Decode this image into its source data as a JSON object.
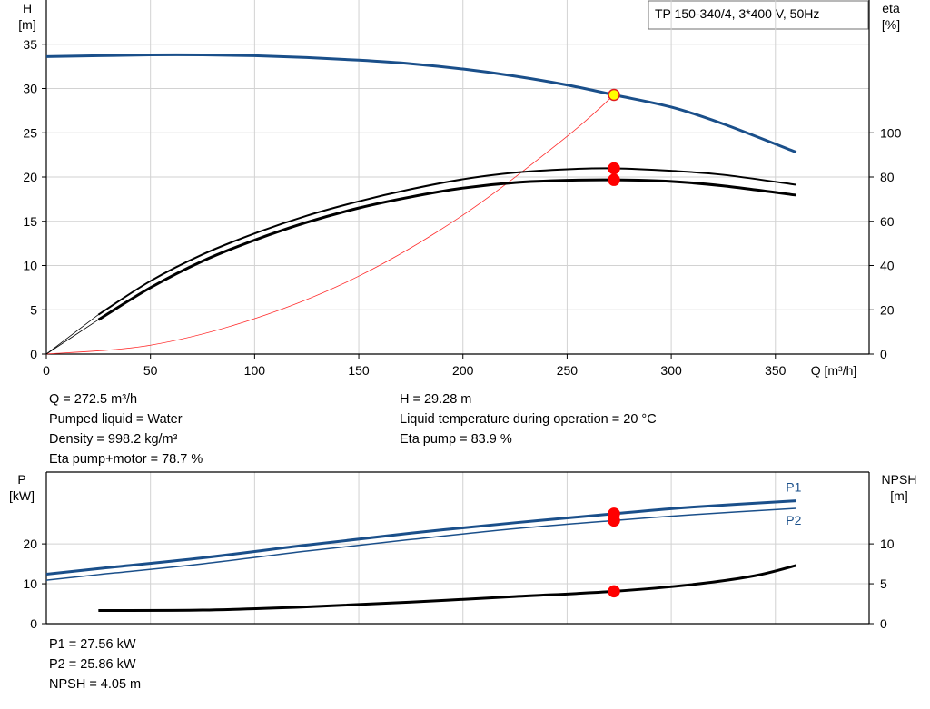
{
  "title_box": "TP 150-340/4, 3*400 V, 50Hz",
  "chart_data": [
    {
      "type": "line",
      "name": "",
      "xlabel": "Q [m³/h]",
      "ylabel_left": [
        "H",
        "[m]"
      ],
      "ylabel_right": [
        "eta",
        "[%]"
      ],
      "xlim": [
        0,
        395
      ],
      "ylim_left": [
        0,
        40
      ],
      "ylim_right": [
        0,
        160
      ],
      "x_ticks": [
        "0",
        "50",
        "100",
        "150",
        "200",
        "250",
        "300",
        "350"
      ],
      "y_ticks_left": [
        "0",
        "5",
        "10",
        "15",
        "20",
        "25",
        "30",
        "35"
      ],
      "y_ticks_right": [
        "0",
        "20",
        "40",
        "60",
        "80",
        "100"
      ],
      "grid": true,
      "series": [
        {
          "axis": "left",
          "color": "#1a4f8a",
          "width": 3,
          "x": [
            0,
            25,
            50,
            75,
            100,
            125,
            150,
            175,
            200,
            225,
            250,
            272.5,
            300,
            325,
            360
          ],
          "y": [
            33.6,
            33.7,
            33.8,
            33.8,
            33.7,
            33.5,
            33.2,
            32.8,
            32.2,
            31.4,
            30.4,
            29.28,
            27.9,
            26.0,
            22.8
          ]
        },
        {
          "axis": "left",
          "color": "#ff2a2a",
          "width": 0.8,
          "x": [
            0,
            50,
            100,
            150,
            200,
            250,
            272.5
          ],
          "y": [
            0,
            1.0,
            4.0,
            8.8,
            15.7,
            24.6,
            29.28
          ]
        },
        {
          "axis": "right",
          "color": "#000000",
          "width": 2,
          "x": [
            25,
            50,
            75,
            100,
            125,
            150,
            175,
            200,
            225,
            250,
            272.5,
            300,
            325,
            360
          ],
          "y": [
            17.8,
            33,
            45,
            54.5,
            62.5,
            69,
            74.5,
            79,
            82,
            83.5,
            83.9,
            82.8,
            81,
            76.5
          ]
        },
        {
          "axis": "right",
          "color": "#000000",
          "width": 3,
          "x": [
            25,
            50,
            75,
            100,
            125,
            150,
            175,
            200,
            225,
            250,
            272.5,
            300,
            325,
            360
          ],
          "y": [
            15.5,
            30,
            42,
            51.5,
            59.5,
            66,
            71,
            75,
            77.5,
            78.5,
            78.7,
            78,
            76,
            71.8
          ]
        },
        {
          "axis": "right",
          "color": "#000000",
          "width": 0.8,
          "x": [
            0,
            25
          ],
          "y": [
            0,
            17.8
          ]
        },
        {
          "axis": "right",
          "color": "#000000",
          "width": 0.8,
          "x": [
            0,
            25
          ],
          "y": [
            0,
            15.5
          ]
        }
      ],
      "markers": [
        {
          "x": 272.5,
          "y": 29.28,
          "axis": "left",
          "fill": "#ffff00",
          "stroke": "#e02020"
        },
        {
          "x": 272.5,
          "y": 83.9,
          "axis": "right",
          "fill": "#ff0000",
          "stroke": "#ff0000"
        },
        {
          "x": 272.5,
          "y": 78.7,
          "axis": "right",
          "fill": "#ff0000",
          "stroke": "#ff0000"
        }
      ]
    },
    {
      "type": "line",
      "name": "",
      "ylabel_left": [
        "P",
        "[kW]"
      ],
      "ylabel_right": [
        "NPSH",
        "[m]"
      ],
      "xlim": [
        0,
        395
      ],
      "ylim_left": [
        0,
        38
      ],
      "ylim_right": [
        0,
        19
      ],
      "y_ticks_left": [
        "0",
        "10",
        "20"
      ],
      "y_ticks_right": [
        "0",
        "5",
        "10"
      ],
      "grid": true,
      "series": [
        {
          "name": "P1",
          "axis": "left",
          "color": "#1a4f8a",
          "width": 3,
          "x": [
            0,
            25,
            75,
            125,
            175,
            225,
            272.5,
            310,
            360
          ],
          "y": [
            12.4,
            13.8,
            16.5,
            19.7,
            22.7,
            25.3,
            27.56,
            29.2,
            30.8
          ]
        },
        {
          "name": "P2",
          "axis": "left",
          "color": "#1a4f8a",
          "width": 1.5,
          "x": [
            0,
            25,
            75,
            125,
            175,
            225,
            272.5,
            310,
            360
          ],
          "y": [
            10.9,
            12.3,
            15.0,
            18.2,
            21.1,
            23.8,
            25.86,
            27.3,
            28.9
          ]
        },
        {
          "name": "NPSH",
          "axis": "right",
          "color": "#000000",
          "width": 3,
          "x": [
            25,
            75,
            125,
            175,
            225,
            272.5,
            310,
            340,
            360
          ],
          "y": [
            1.65,
            1.7,
            2.1,
            2.7,
            3.4,
            4.05,
            4.9,
            6.0,
            7.3
          ]
        }
      ],
      "series_labels": [
        "P1",
        "P2"
      ],
      "markers": [
        {
          "x": 272.5,
          "y": 27.56,
          "axis": "left",
          "fill": "#ff0000",
          "stroke": "#ff0000"
        },
        {
          "x": 272.5,
          "y": 25.86,
          "axis": "left",
          "fill": "#ff0000",
          "stroke": "#ff0000"
        },
        {
          "x": 272.5,
          "y": 4.05,
          "axis": "right",
          "fill": "#ff0000",
          "stroke": "#ff0000"
        }
      ]
    }
  ],
  "info_left": [
    "Q = 272.5 m³/h",
    "Pumped liquid = Water",
    "Density = 998.2 kg/m³",
    "Eta pump+motor = 78.7 %"
  ],
  "info_right": [
    "H = 29.28 m",
    "Liquid temperature during operation = 20 °C",
    "Eta pump = 83.9 %"
  ],
  "info_bottom": [
    "P1 = 27.56 kW",
    "P2 = 25.86 kW",
    "NPSH = 4.05 m"
  ]
}
